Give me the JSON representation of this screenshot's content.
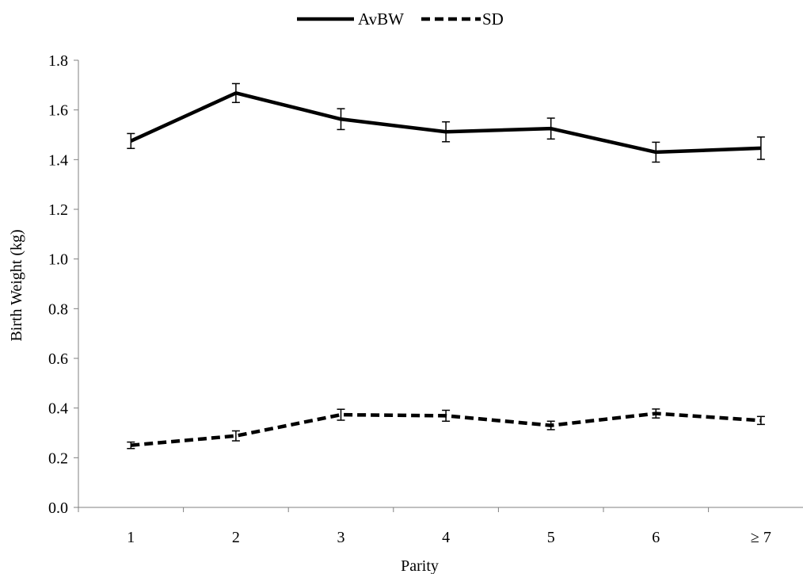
{
  "chart_data": {
    "type": "line",
    "categories": [
      "1",
      "2",
      "3",
      "4",
      "5",
      "6",
      "≥ 7"
    ],
    "series": [
      {
        "name": "AvBW",
        "values": [
          1.475,
          1.668,
          1.563,
          1.512,
          1.525,
          1.43,
          1.446
        ],
        "error": [
          0.03,
          0.038,
          0.042,
          0.04,
          0.042,
          0.04,
          0.045
        ],
        "style": "solid",
        "color": "#000000"
      },
      {
        "name": "SD",
        "values": [
          0.25,
          0.288,
          0.373,
          0.369,
          0.33,
          0.378,
          0.35
        ],
        "error": [
          0.013,
          0.02,
          0.022,
          0.022,
          0.017,
          0.018,
          0.016
        ],
        "style": "dashed",
        "color": "#000000"
      }
    ],
    "title": "",
    "xlabel": "Parity",
    "ylabel": "Birth Weight (kg)",
    "ylim": [
      0.0,
      1.8
    ],
    "yticks": [
      "0.0",
      "0.2",
      "0.4",
      "0.6",
      "0.8",
      "1.0",
      "1.2",
      "1.4",
      "1.6",
      "1.8"
    ],
    "grid": false,
    "legend_position": "top-center"
  }
}
